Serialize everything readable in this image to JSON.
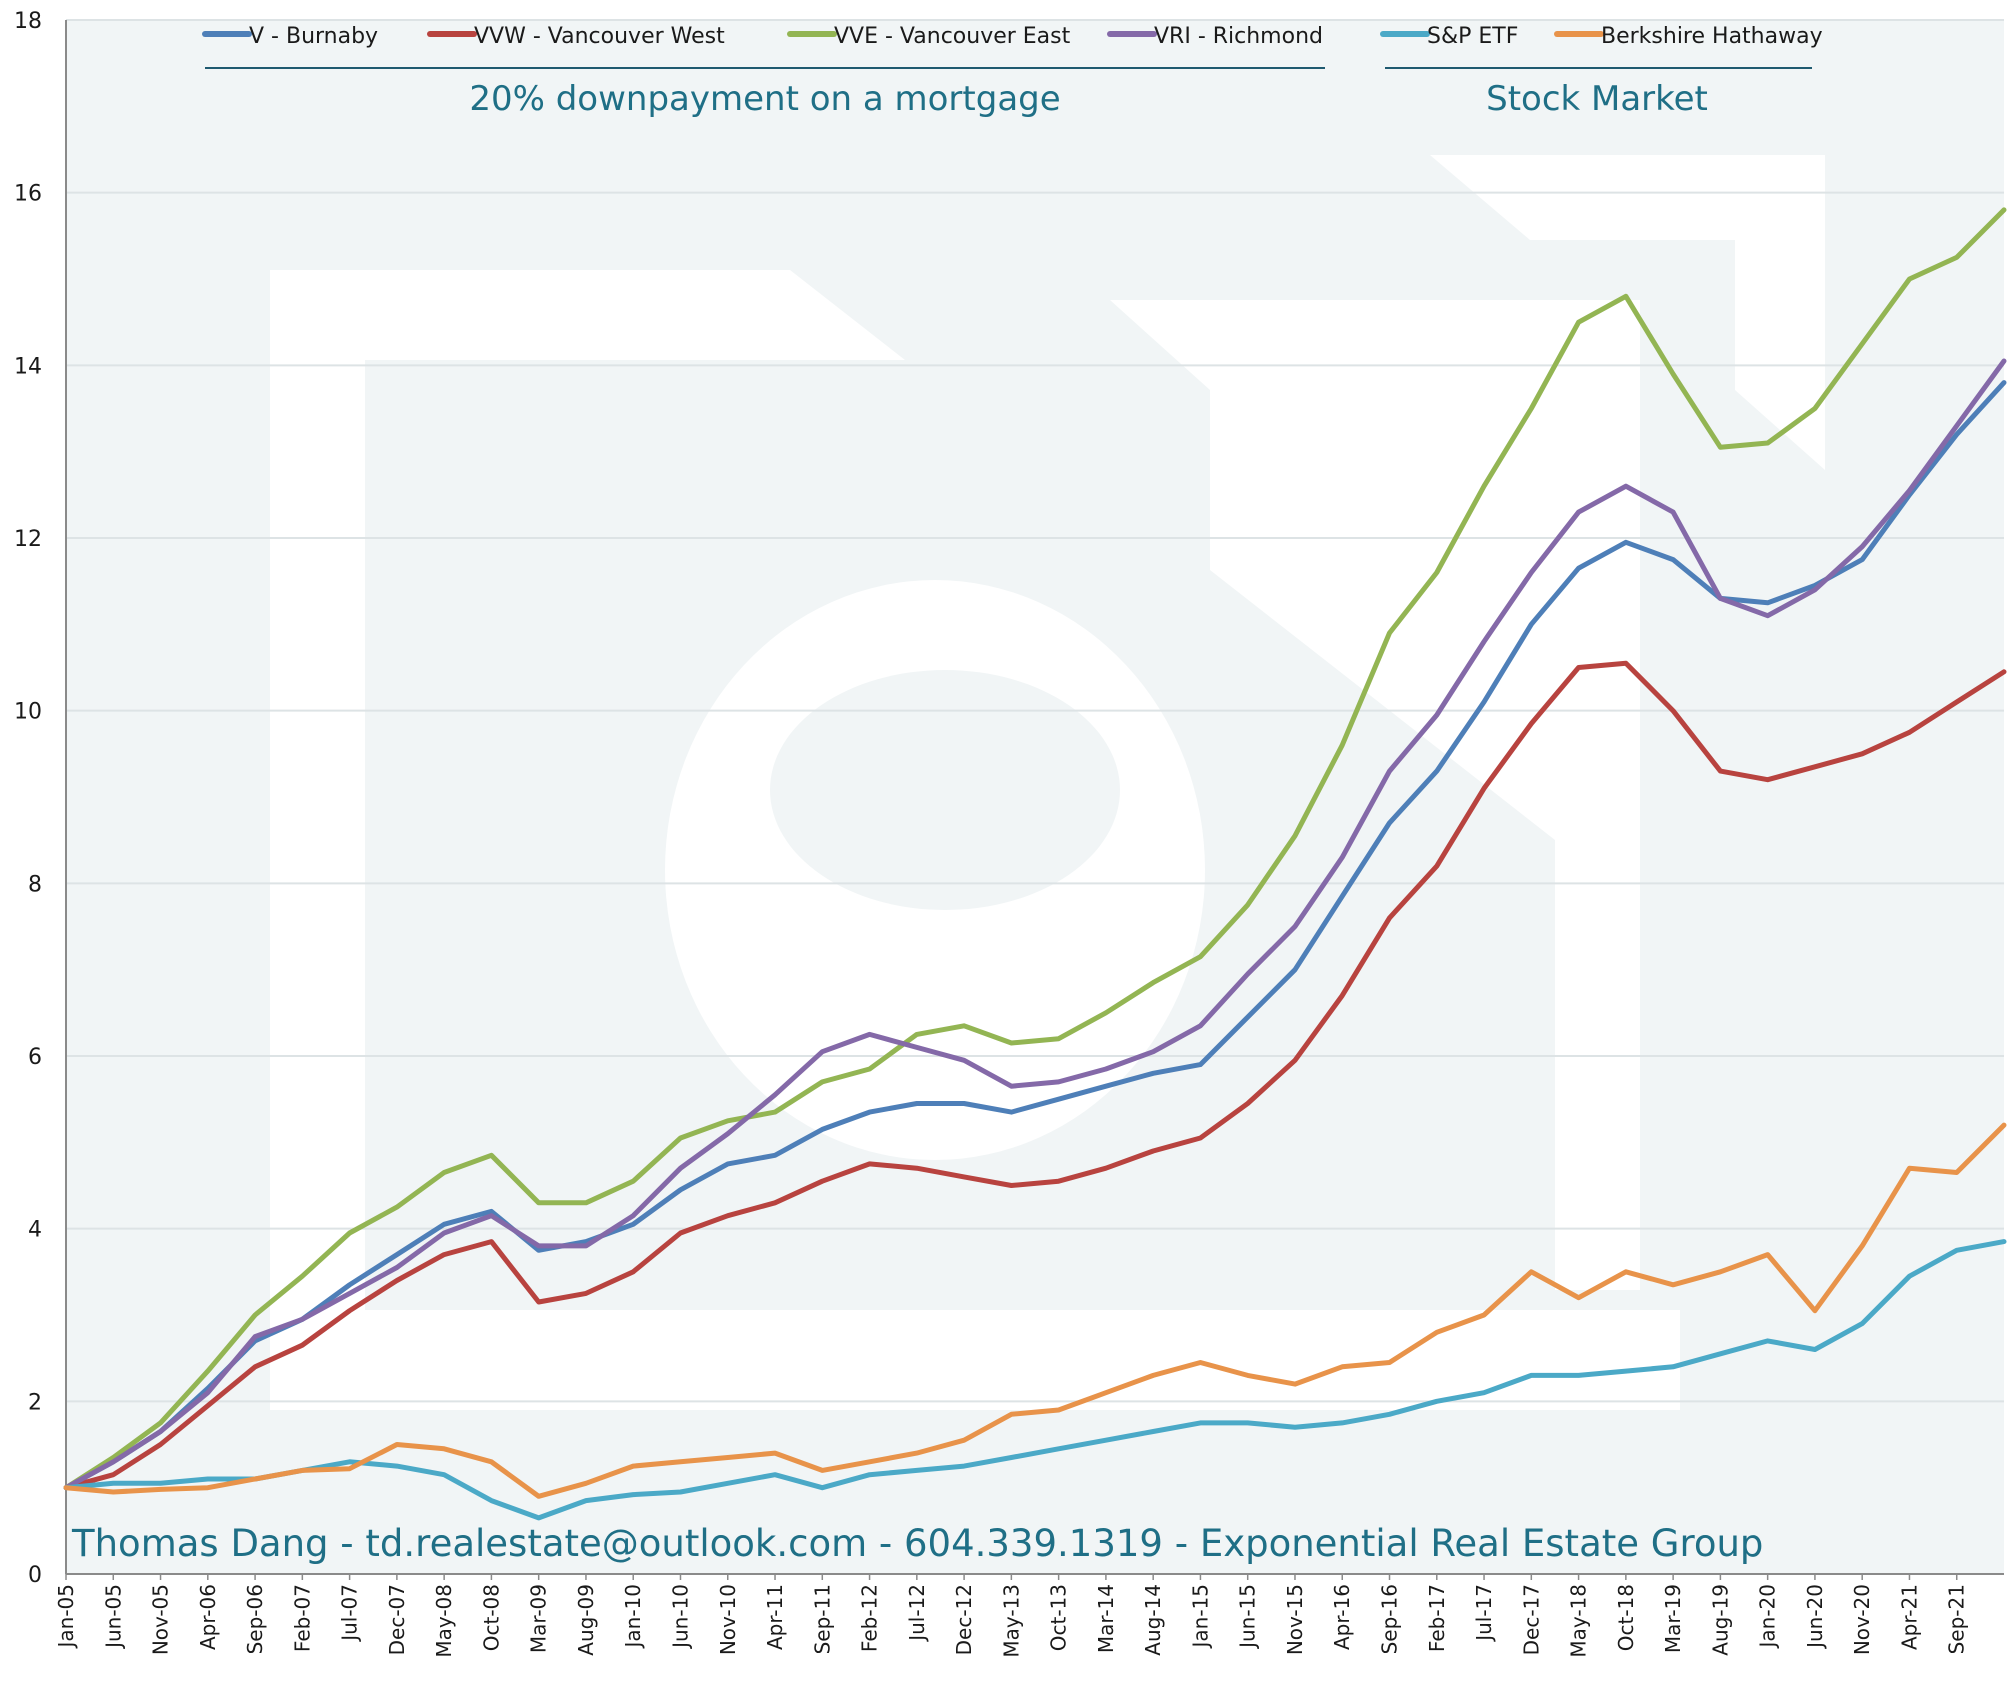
{
  "chart_data": {
    "type": "line",
    "title": "",
    "xlabel": "",
    "ylabel": "",
    "ylim": [
      0,
      18
    ],
    "yticks": [
      "0",
      "2",
      "4",
      "6",
      "8",
      "10",
      "12",
      "14",
      "16",
      "18"
    ],
    "x_tick_labels": [
      "Jan-05",
      "Jun-05",
      "Nov-05",
      "Apr-06",
      "Sep-06",
      "Feb-07",
      "Jul-07",
      "Dec-07",
      "May-08",
      "Oct-08",
      "Mar-09",
      "Aug-09",
      "Jan-10",
      "Jun-10",
      "Nov-10",
      "Apr-11",
      "Sep-11",
      "Feb-12",
      "Jul-12",
      "Dec-12",
      "May-13",
      "Oct-13",
      "Mar-14",
      "Aug-14",
      "Jan-15",
      "Jun-15",
      "Nov-15",
      "Apr-16",
      "Sep-16",
      "Feb-17",
      "Jul-17",
      "Dec-17",
      "May-18",
      "Oct-18",
      "Mar-19",
      "Aug-19",
      "Jan-20",
      "Jun-20",
      "Nov-20",
      "Apr-21",
      "Sep-21"
    ],
    "x_range": [
      "Jan-05",
      "Feb-22"
    ],
    "grid": "horizontal",
    "legend_position": "top",
    "group_labels": [
      "20% downpayment on a mortgage",
      "Stock Market"
    ],
    "footer": "Thomas Dang - td.realestate@outlook.com - 604.339.1319 - Exponential Real Estate Group",
    "series": [
      {
        "name": "V - Burnaby",
        "color": "#4e7fb8",
        "points": [
          [
            "Jan-05",
            1.0
          ],
          [
            "Jun-05",
            1.3
          ],
          [
            "Nov-05",
            1.65
          ],
          [
            "Apr-06",
            2.15
          ],
          [
            "Sep-06",
            2.7
          ],
          [
            "Feb-07",
            2.95
          ],
          [
            "Jul-07",
            3.35
          ],
          [
            "Dec-07",
            3.7
          ],
          [
            "May-08",
            4.05
          ],
          [
            "Oct-08",
            4.2
          ],
          [
            "Mar-09",
            3.75
          ],
          [
            "Aug-09",
            3.85
          ],
          [
            "Jan-10",
            4.05
          ],
          [
            "Jun-10",
            4.45
          ],
          [
            "Nov-10",
            4.75
          ],
          [
            "Apr-11",
            4.85
          ],
          [
            "Sep-11",
            5.15
          ],
          [
            "Feb-12",
            5.35
          ],
          [
            "Jul-12",
            5.45
          ],
          [
            "Dec-12",
            5.45
          ],
          [
            "May-13",
            5.35
          ],
          [
            "Oct-13",
            5.5
          ],
          [
            "Mar-14",
            5.65
          ],
          [
            "Aug-14",
            5.8
          ],
          [
            "Jan-15",
            5.9
          ],
          [
            "Jun-15",
            6.45
          ],
          [
            "Nov-15",
            7.0
          ],
          [
            "Apr-16",
            7.85
          ],
          [
            "Sep-16",
            8.7
          ],
          [
            "Feb-17",
            9.3
          ],
          [
            "Jul-17",
            10.1
          ],
          [
            "Dec-17",
            11.0
          ],
          [
            "May-18",
            11.65
          ],
          [
            "Oct-18",
            11.95
          ],
          [
            "Mar-19",
            11.75
          ],
          [
            "Aug-19",
            11.3
          ],
          [
            "Jan-20",
            11.25
          ],
          [
            "Jun-20",
            11.45
          ],
          [
            "Nov-20",
            11.75
          ],
          [
            "Apr-21",
            12.5
          ],
          [
            "Sep-21",
            13.2
          ],
          [
            "Feb-22",
            13.8
          ]
        ]
      },
      {
        "name": "VVW - Vancouver West",
        "color": "#b8433f",
        "points": [
          [
            "Jan-05",
            1.0
          ],
          [
            "Jun-05",
            1.15
          ],
          [
            "Nov-05",
            1.5
          ],
          [
            "Apr-06",
            1.95
          ],
          [
            "Sep-06",
            2.4
          ],
          [
            "Feb-07",
            2.65
          ],
          [
            "Jul-07",
            3.05
          ],
          [
            "Dec-07",
            3.4
          ],
          [
            "May-08",
            3.7
          ],
          [
            "Oct-08",
            3.85
          ],
          [
            "Mar-09",
            3.15
          ],
          [
            "Aug-09",
            3.25
          ],
          [
            "Jan-10",
            3.5
          ],
          [
            "Jun-10",
            3.95
          ],
          [
            "Nov-10",
            4.15
          ],
          [
            "Apr-11",
            4.3
          ],
          [
            "Sep-11",
            4.55
          ],
          [
            "Feb-12",
            4.75
          ],
          [
            "Jul-12",
            4.7
          ],
          [
            "Dec-12",
            4.6
          ],
          [
            "May-13",
            4.5
          ],
          [
            "Oct-13",
            4.55
          ],
          [
            "Mar-14",
            4.7
          ],
          [
            "Aug-14",
            4.9
          ],
          [
            "Jan-15",
            5.05
          ],
          [
            "Jun-15",
            5.45
          ],
          [
            "Nov-15",
            5.95
          ],
          [
            "Apr-16",
            6.7
          ],
          [
            "Sep-16",
            7.6
          ],
          [
            "Feb-17",
            8.2
          ],
          [
            "Jul-17",
            9.1
          ],
          [
            "Dec-17",
            9.85
          ],
          [
            "May-18",
            10.5
          ],
          [
            "Oct-18",
            10.55
          ],
          [
            "Mar-19",
            10.0
          ],
          [
            "Aug-19",
            9.3
          ],
          [
            "Jan-20",
            9.2
          ],
          [
            "Jun-20",
            9.35
          ],
          [
            "Nov-20",
            9.5
          ],
          [
            "Apr-21",
            9.75
          ],
          [
            "Sep-21",
            10.1
          ],
          [
            "Feb-22",
            10.45
          ]
        ]
      },
      {
        "name": "VVE - Vancouver East",
        "color": "#93b553",
        "points": [
          [
            "Jan-05",
            1.0
          ],
          [
            "Jun-05",
            1.35
          ],
          [
            "Nov-05",
            1.75
          ],
          [
            "Apr-06",
            2.35
          ],
          [
            "Sep-06",
            3.0
          ],
          [
            "Feb-07",
            3.45
          ],
          [
            "Jul-07",
            3.95
          ],
          [
            "Dec-07",
            4.25
          ],
          [
            "May-08",
            4.65
          ],
          [
            "Oct-08",
            4.85
          ],
          [
            "Mar-09",
            4.3
          ],
          [
            "Aug-09",
            4.3
          ],
          [
            "Jan-10",
            4.55
          ],
          [
            "Jun-10",
            5.05
          ],
          [
            "Nov-10",
            5.25
          ],
          [
            "Apr-11",
            5.35
          ],
          [
            "Sep-11",
            5.7
          ],
          [
            "Feb-12",
            5.85
          ],
          [
            "Jul-12",
            6.25
          ],
          [
            "Dec-12",
            6.35
          ],
          [
            "May-13",
            6.15
          ],
          [
            "Oct-13",
            6.2
          ],
          [
            "Mar-14",
            6.5
          ],
          [
            "Aug-14",
            6.85
          ],
          [
            "Jan-15",
            7.15
          ],
          [
            "Jun-15",
            7.75
          ],
          [
            "Nov-15",
            8.55
          ],
          [
            "Apr-16",
            9.6
          ],
          [
            "Sep-16",
            10.9
          ],
          [
            "Feb-17",
            11.6
          ],
          [
            "Jul-17",
            12.6
          ],
          [
            "Dec-17",
            13.5
          ],
          [
            "May-18",
            14.5
          ],
          [
            "Oct-18",
            14.8
          ],
          [
            "Mar-19",
            13.9
          ],
          [
            "Aug-19",
            13.05
          ],
          [
            "Jan-20",
            13.1
          ],
          [
            "Jun-20",
            13.5
          ],
          [
            "Nov-20",
            14.25
          ],
          [
            "Apr-21",
            15.0
          ],
          [
            "Sep-21",
            15.25
          ],
          [
            "Feb-22",
            15.8
          ]
        ]
      },
      {
        "name": "VRI - Richmond",
        "color": "#8469a8",
        "points": [
          [
            "Jan-05",
            1.0
          ],
          [
            "Jun-05",
            1.3
          ],
          [
            "Nov-05",
            1.65
          ],
          [
            "Apr-06",
            2.1
          ],
          [
            "Sep-06",
            2.75
          ],
          [
            "Feb-07",
            2.95
          ],
          [
            "Jul-07",
            3.25
          ],
          [
            "Dec-07",
            3.55
          ],
          [
            "May-08",
            3.95
          ],
          [
            "Oct-08",
            4.15
          ],
          [
            "Mar-09",
            3.8
          ],
          [
            "Aug-09",
            3.8
          ],
          [
            "Jan-10",
            4.15
          ],
          [
            "Jun-10",
            4.7
          ],
          [
            "Nov-10",
            5.1
          ],
          [
            "Apr-11",
            5.55
          ],
          [
            "Sep-11",
            6.05
          ],
          [
            "Feb-12",
            6.25
          ],
          [
            "Jul-12",
            6.1
          ],
          [
            "Dec-12",
            5.95
          ],
          [
            "May-13",
            5.65
          ],
          [
            "Oct-13",
            5.7
          ],
          [
            "Mar-14",
            5.85
          ],
          [
            "Aug-14",
            6.05
          ],
          [
            "Jan-15",
            6.35
          ],
          [
            "Jun-15",
            6.95
          ],
          [
            "Nov-15",
            7.5
          ],
          [
            "Apr-16",
            8.3
          ],
          [
            "Sep-16",
            9.3
          ],
          [
            "Feb-17",
            9.95
          ],
          [
            "Jul-17",
            10.8
          ],
          [
            "Dec-17",
            11.6
          ],
          [
            "May-18",
            12.3
          ],
          [
            "Oct-18",
            12.6
          ],
          [
            "Mar-19",
            12.3
          ],
          [
            "Aug-19",
            11.3
          ],
          [
            "Jan-20",
            11.1
          ],
          [
            "Jun-20",
            11.4
          ],
          [
            "Nov-20",
            11.9
          ],
          [
            "Apr-21",
            12.55
          ],
          [
            "Sep-21",
            13.3
          ],
          [
            "Feb-22",
            14.05
          ]
        ]
      },
      {
        "name": "S&P ETF",
        "color": "#4ba9c7",
        "points": [
          [
            "Jan-05",
            1.0
          ],
          [
            "Jun-05",
            1.05
          ],
          [
            "Nov-05",
            1.05
          ],
          [
            "Apr-06",
            1.1
          ],
          [
            "Sep-06",
            1.1
          ],
          [
            "Feb-07",
            1.2
          ],
          [
            "Jul-07",
            1.3
          ],
          [
            "Dec-07",
            1.25
          ],
          [
            "May-08",
            1.15
          ],
          [
            "Oct-08",
            0.85
          ],
          [
            "Mar-09",
            0.65
          ],
          [
            "Aug-09",
            0.85
          ],
          [
            "Jan-10",
            0.92
          ],
          [
            "Jun-10",
            0.95
          ],
          [
            "Nov-10",
            1.05
          ],
          [
            "Apr-11",
            1.15
          ],
          [
            "Sep-11",
            1.0
          ],
          [
            "Feb-12",
            1.15
          ],
          [
            "Jul-12",
            1.2
          ],
          [
            "Dec-12",
            1.25
          ],
          [
            "May-13",
            1.35
          ],
          [
            "Oct-13",
            1.45
          ],
          [
            "Mar-14",
            1.55
          ],
          [
            "Aug-14",
            1.65
          ],
          [
            "Jan-15",
            1.75
          ],
          [
            "Jun-15",
            1.75
          ],
          [
            "Nov-15",
            1.7
          ],
          [
            "Apr-16",
            1.75
          ],
          [
            "Sep-16",
            1.85
          ],
          [
            "Feb-17",
            2.0
          ],
          [
            "Jul-17",
            2.1
          ],
          [
            "Dec-17",
            2.3
          ],
          [
            "May-18",
            2.3
          ],
          [
            "Oct-18",
            2.35
          ],
          [
            "Mar-19",
            2.4
          ],
          [
            "Aug-19",
            2.55
          ],
          [
            "Jan-20",
            2.7
          ],
          [
            "Jun-20",
            2.6
          ],
          [
            "Nov-20",
            2.9
          ],
          [
            "Apr-21",
            3.45
          ],
          [
            "Sep-21",
            3.75
          ],
          [
            "Feb-22",
            3.85
          ]
        ]
      },
      {
        "name": "Berkshire Hathaway",
        "color": "#e8934a",
        "points": [
          [
            "Jan-05",
            1.0
          ],
          [
            "Jun-05",
            0.95
          ],
          [
            "Nov-05",
            0.98
          ],
          [
            "Apr-06",
            1.0
          ],
          [
            "Sep-06",
            1.1
          ],
          [
            "Feb-07",
            1.2
          ],
          [
            "Jul-07",
            1.22
          ],
          [
            "Dec-07",
            1.5
          ],
          [
            "May-08",
            1.45
          ],
          [
            "Oct-08",
            1.3
          ],
          [
            "Mar-09",
            0.9
          ],
          [
            "Aug-09",
            1.05
          ],
          [
            "Jan-10",
            1.25
          ],
          [
            "Jun-10",
            1.3
          ],
          [
            "Nov-10",
            1.35
          ],
          [
            "Apr-11",
            1.4
          ],
          [
            "Sep-11",
            1.2
          ],
          [
            "Feb-12",
            1.3
          ],
          [
            "Jul-12",
            1.4
          ],
          [
            "Dec-12",
            1.55
          ],
          [
            "May-13",
            1.85
          ],
          [
            "Oct-13",
            1.9
          ],
          [
            "Mar-14",
            2.1
          ],
          [
            "Aug-14",
            2.3
          ],
          [
            "Jan-15",
            2.45
          ],
          [
            "Jun-15",
            2.3
          ],
          [
            "Nov-15",
            2.2
          ],
          [
            "Apr-16",
            2.4
          ],
          [
            "Sep-16",
            2.45
          ],
          [
            "Feb-17",
            2.8
          ],
          [
            "Jul-17",
            3.0
          ],
          [
            "Dec-17",
            3.5
          ],
          [
            "May-18",
            3.2
          ],
          [
            "Oct-18",
            3.5
          ],
          [
            "Mar-19",
            3.35
          ],
          [
            "Aug-19",
            3.5
          ],
          [
            "Jan-20",
            3.7
          ],
          [
            "Jun-20",
            3.05
          ],
          [
            "Nov-20",
            3.8
          ],
          [
            "Apr-21",
            4.7
          ],
          [
            "Sep-21",
            4.65
          ],
          [
            "Feb-22",
            5.2
          ]
        ]
      }
    ]
  }
}
